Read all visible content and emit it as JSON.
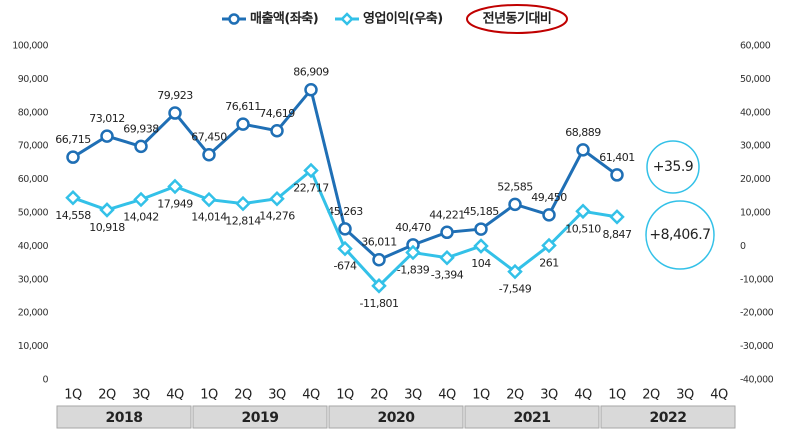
{
  "chart_data": {
    "type": "line",
    "categories": [
      "1Q",
      "2Q",
      "3Q",
      "4Q",
      "1Q",
      "2Q",
      "3Q",
      "4Q",
      "1Q",
      "2Q",
      "3Q",
      "4Q",
      "1Q",
      "2Q",
      "3Q",
      "4Q",
      "1Q",
      "2Q",
      "3Q",
      "4Q"
    ],
    "years": [
      "2018",
      "2019",
      "2020",
      "2021",
      "2022"
    ],
    "series": [
      {
        "name": "매출액(좌축)",
        "color": "#1f6fb5",
        "marker": "circle",
        "values": [
          66715,
          73012,
          69938,
          79923,
          67450,
          76611,
          74619,
          86909,
          45263,
          36011,
          40470,
          44221,
          45185,
          52585,
          49450,
          68889,
          61401,
          null,
          null,
          null
        ],
        "value_labels": [
          "66,715",
          "73,012",
          "69,938",
          "79,923",
          "67,450",
          "76,611",
          "74,619",
          "86,909",
          "45,263",
          "36,011",
          "40,470",
          "44,221",
          "45,185",
          "52,585",
          "49,450",
          "68,889",
          "61,401",
          null,
          null,
          null
        ]
      },
      {
        "name": "영업이익(우축)",
        "color": "#33c1e8",
        "marker": "diamond",
        "axis": "y2",
        "values": [
          14558,
          10918,
          14042,
          17949,
          14014,
          12814,
          14276,
          22717,
          -674,
          -11801,
          -1839,
          -3394,
          104,
          -7549,
          261,
          10510,
          8847,
          null,
          null,
          null
        ],
        "value_labels": [
          "14,558",
          "10,918",
          "14,042",
          "17,949",
          "14,014",
          "12,814",
          "14,276",
          "22,717",
          "-674",
          "-11,801",
          "-1,839",
          "-3,394",
          "104",
          "-7,549",
          "261",
          "10,510",
          "8,847",
          null,
          null,
          null
        ]
      }
    ],
    "ylim": [
      0,
      100000
    ],
    "yticks": [
      0,
      {
        "value": 10000,
        "label": "10,000"
      },
      {
        "value": 20000,
        "label": "20,000"
      },
      {
        "value": 30000,
        "label": "30,000"
      },
      {
        "value": 40000,
        "label": "40,000"
      },
      {
        "value": 50000,
        "label": "50,000"
      },
      {
        "value": 60000,
        "label": "60,000"
      },
      {
        "value": 70000,
        "label": "70,000"
      },
      {
        "value": 80000,
        "label": "80,000"
      },
      {
        "value": 90000,
        "label": "90,000"
      },
      {
        "value": 100000,
        "label": "100,000"
      }
    ],
    "y2lim": [
      -40000,
      60000
    ],
    "y2ticks": [
      {
        "value": -40000,
        "label": "-40,000"
      },
      {
        "value": -30000,
        "label": "-30,000"
      },
      {
        "value": -20000,
        "label": "-20,000"
      },
      {
        "value": -10000,
        "label": "-10,000"
      },
      0,
      {
        "value": 10000,
        "label": "10,000"
      },
      {
        "value": 20000,
        "label": "20,000"
      },
      {
        "value": 30000,
        "label": "30,000"
      },
      {
        "value": 40000,
        "label": "40,000"
      },
      {
        "value": 50000,
        "label": "50,000"
      },
      {
        "value": 60000,
        "label": "60,000"
      }
    ],
    "grid": false,
    "yoy_label": "전년동기대비",
    "annotations": [
      {
        "text": "+35.9"
      },
      {
        "text": "+8,406.7"
      }
    ]
  }
}
